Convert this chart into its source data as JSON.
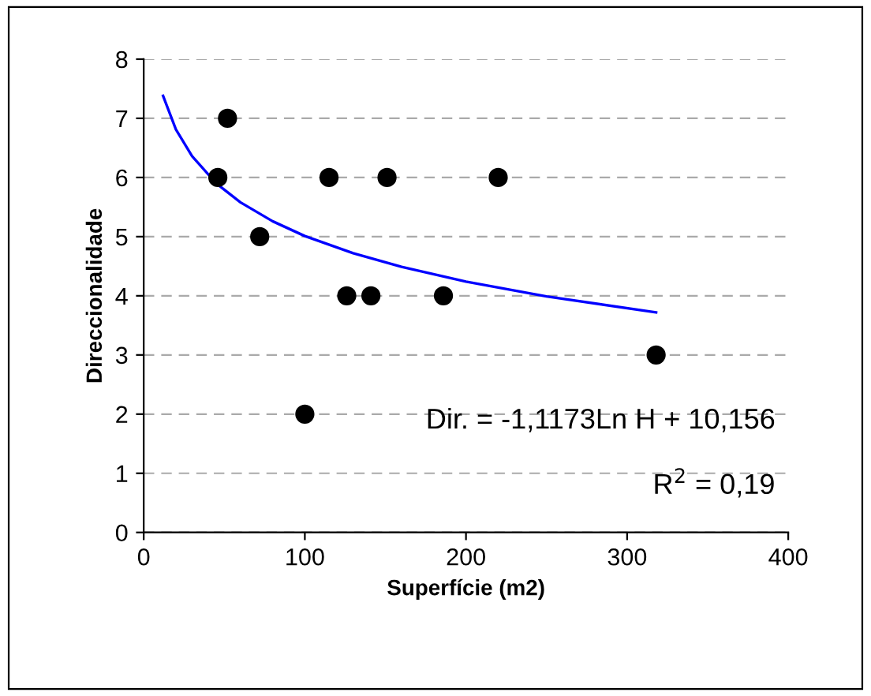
{
  "chart_data": {
    "type": "scatter",
    "xlabel": "Superfície (m2)",
    "ylabel": "Direccionalidade",
    "xlim": [
      0,
      400
    ],
    "xticks": [
      0,
      100,
      200,
      300,
      400
    ],
    "ylim": [
      0,
      8
    ],
    "yticks": [
      0,
      1,
      2,
      3,
      4,
      5,
      6,
      7,
      8
    ],
    "grid": "y",
    "legend": false,
    "series": [
      {
        "color": "#000000",
        "marker": "circle",
        "x": [
          46,
          52,
          72,
          100,
          115,
          126,
          141,
          151,
          186,
          220,
          318
        ],
        "values": [
          6,
          7,
          5,
          2,
          6,
          4,
          4,
          6,
          4,
          6,
          3
        ]
      },
      {
        "type": "line",
        "color": "#0000ff",
        "marker": "none",
        "line_style": "solid",
        "x": [
          12,
          20,
          30,
          45,
          60,
          80,
          100,
          130,
          160,
          200,
          250,
          318
        ],
        "values": [
          7.38,
          6.81,
          6.36,
          5.9,
          5.58,
          5.26,
          5.01,
          4.72,
          4.49,
          4.24,
          3.99,
          3.72
        ]
      }
    ],
    "annotations": [
      "Dir. = -1,1173Ln H + 10,156",
      "R$^{2}$ = 0,19"
    ]
  }
}
